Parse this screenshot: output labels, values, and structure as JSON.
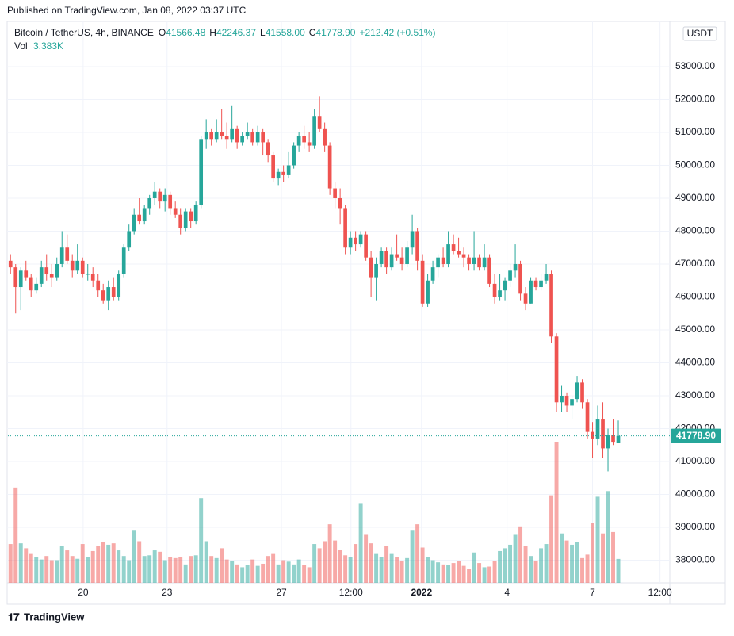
{
  "published": "Published on TradingView.com, Jan 08, 2022 03:37 UTC",
  "footer": "TradingView",
  "chart_data": {
    "type": "candlestick",
    "symbol": "Bitcoin / TetherUS, 4h, BINANCE",
    "ohlc_header": [
      {
        "key": "O",
        "value": "41566.48"
      },
      {
        "key": "H",
        "value": "42246.37"
      },
      {
        "key": "L",
        "value": "41558.00"
      },
      {
        "key": "C",
        "value": "41778.90"
      }
    ],
    "change": "+212.42 (+0.51%)",
    "volume_label": "Vol",
    "volume_value": "3.383K",
    "currency": "USDT",
    "up_color": "#26a69a",
    "down_color": "#ef5350",
    "last_price": {
      "value": 41778.9,
      "label": "41778.90"
    },
    "ylim": [
      37313,
      54349
    ],
    "yticks": [
      {
        "value": 38000,
        "label": "38000.00"
      },
      {
        "value": 39000,
        "label": "39000.00"
      },
      {
        "value": 40000,
        "label": "40000.00"
      },
      {
        "value": 41000,
        "label": "41000.00"
      },
      {
        "value": 42000,
        "label": "42000.00"
      },
      {
        "value": 43000,
        "label": "43000.00"
      },
      {
        "value": 44000,
        "label": "44000.00"
      },
      {
        "value": 45000,
        "label": "45000.00"
      },
      {
        "value": 46000,
        "label": "46000.00"
      },
      {
        "value": 47000,
        "label": "47000.00"
      },
      {
        "value": 48000,
        "label": "48000.00"
      },
      {
        "value": 49000,
        "label": "49000.00"
      },
      {
        "value": 50000,
        "label": "50000.00"
      },
      {
        "value": 51000,
        "label": "51000.00"
      },
      {
        "value": 52000,
        "label": "52000.00"
      },
      {
        "value": 53000,
        "label": "53000.00"
      }
    ],
    "xlim": [
      0,
      128.5
    ],
    "xticks": [
      {
        "value": 14.6,
        "label": "20"
      },
      {
        "value": 30.9,
        "label": "23"
      },
      {
        "value": 53.1,
        "label": "27"
      },
      {
        "value": 66.6,
        "label": "12:00"
      },
      {
        "value": 80.3,
        "label": "2022"
      },
      {
        "value": 96.9,
        "label": "4"
      },
      {
        "value": 113.5,
        "label": "7"
      },
      {
        "value": 126.6,
        "label": "12:00"
      }
    ],
    "grid": true,
    "candles": [
      [
        47100,
        47300,
        46700,
        46900
      ],
      [
        46900,
        47000,
        45500,
        46300
      ],
      [
        46300,
        46900,
        45600,
        46800
      ],
      [
        46800,
        47100,
        46500,
        46600
      ],
      [
        46600,
        46700,
        46000,
        46200
      ],
      [
        46200,
        46600,
        46100,
        46400
      ],
      [
        46400,
        47100,
        46300,
        46900
      ],
      [
        46900,
        47300,
        46500,
        46700
      ],
      [
        46700,
        47000,
        46300,
        46600
      ],
      [
        46600,
        47200,
        46500,
        47000
      ],
      [
        47000,
        48000,
        46900,
        47500
      ],
      [
        47500,
        47900,
        47000,
        47100
      ],
      [
        47100,
        47300,
        46600,
        46800
      ],
      [
        46800,
        47600,
        46700,
        47100
      ],
      [
        47100,
        47200,
        46600,
        46700
      ],
      [
        46700,
        47000,
        46500,
        46700
      ],
      [
        46700,
        46900,
        46300,
        46500
      ],
      [
        46500,
        46700,
        46000,
        46200
      ],
      [
        46200,
        46400,
        45800,
        45900
      ],
      [
        45900,
        46500,
        45600,
        46300
      ],
      [
        46300,
        46600,
        45900,
        46000
      ],
      [
        46000,
        46800,
        45900,
        46700
      ],
      [
        46700,
        47600,
        46600,
        47500
      ],
      [
        47500,
        48200,
        47400,
        48000
      ],
      [
        48000,
        48700,
        47900,
        48500
      ],
      [
        48500,
        49000,
        48200,
        48300
      ],
      [
        48300,
        48800,
        48200,
        48700
      ],
      [
        48700,
        49100,
        48500,
        49000
      ],
      [
        49000,
        49500,
        48800,
        49200
      ],
      [
        49200,
        49300,
        48700,
        48900
      ],
      [
        48900,
        49300,
        48600,
        49100
      ],
      [
        49100,
        49200,
        48500,
        48700
      ],
      [
        48700,
        48900,
        48400,
        48500
      ],
      [
        48500,
        48700,
        47900,
        48100
      ],
      [
        48100,
        48700,
        48000,
        48600
      ],
      [
        48600,
        48700,
        48100,
        48300
      ],
      [
        48300,
        48900,
        48200,
        48800
      ],
      [
        48800,
        50900,
        48700,
        50800
      ],
      [
        50800,
        51400,
        50500,
        51000
      ],
      [
        51000,
        51100,
        50600,
        50800
      ],
      [
        50800,
        51400,
        50700,
        51000
      ],
      [
        51000,
        51700,
        50800,
        50900
      ],
      [
        50900,
        51300,
        50500,
        50800
      ],
      [
        50800,
        51800,
        50700,
        51100
      ],
      [
        51100,
        51200,
        50500,
        50700
      ],
      [
        50700,
        51000,
        50600,
        50900
      ],
      [
        50900,
        51300,
        50800,
        51000
      ],
      [
        51000,
        51100,
        50600,
        50700
      ],
      [
        50700,
        51200,
        50600,
        51000
      ],
      [
        51000,
        51100,
        50300,
        50700
      ],
      [
        50700,
        50800,
        50100,
        50300
      ],
      [
        50300,
        50400,
        49500,
        49600
      ],
      [
        49600,
        49900,
        49400,
        49800
      ],
      [
        49800,
        50000,
        49500,
        49700
      ],
      [
        49700,
        50400,
        49600,
        50000
      ],
      [
        50000,
        50700,
        49900,
        50600
      ],
      [
        50600,
        51000,
        50400,
        50900
      ],
      [
        50900,
        51200,
        50500,
        50700
      ],
      [
        50700,
        51000,
        50400,
        50600
      ],
      [
        50600,
        51700,
        50500,
        51500
      ],
      [
        51500,
        52100,
        51000,
        51100
      ],
      [
        51100,
        51300,
        50400,
        50600
      ],
      [
        50600,
        50700,
        49100,
        49300
      ],
      [
        49300,
        49500,
        48700,
        49000
      ],
      [
        49000,
        49300,
        48200,
        48700
      ],
      [
        48700,
        48800,
        47300,
        47500
      ],
      [
        47500,
        48000,
        47300,
        47800
      ],
      [
        47800,
        48000,
        47400,
        47600
      ],
      [
        47600,
        48000,
        47500,
        47900
      ],
      [
        47900,
        48000,
        47100,
        47200
      ],
      [
        47200,
        47400,
        46000,
        46600
      ],
      [
        46600,
        47200,
        45900,
        47000
      ],
      [
        47000,
        47500,
        46900,
        47400
      ],
      [
        47400,
        47500,
        46700,
        46900
      ],
      [
        46900,
        47500,
        46800,
        47300
      ],
      [
        47300,
        47900,
        47100,
        47200
      ],
      [
        47200,
        47500,
        46800,
        47000
      ],
      [
        47000,
        47700,
        46900,
        47500
      ],
      [
        47500,
        48500,
        47300,
        48000
      ],
      [
        48000,
        48100,
        46800,
        47100
      ],
      [
        47100,
        47300,
        45700,
        45800
      ],
      [
        45800,
        46700,
        45700,
        46500
      ],
      [
        46500,
        47100,
        46400,
        46900
      ],
      [
        46900,
        47300,
        46600,
        47200
      ],
      [
        47200,
        47500,
        46900,
        47000
      ],
      [
        47000,
        48000,
        46900,
        47600
      ],
      [
        47600,
        47900,
        47300,
        47400
      ],
      [
        47400,
        47800,
        47200,
        47300
      ],
      [
        47300,
        47500,
        46900,
        47200
      ],
      [
        47200,
        47300,
        46800,
        47000
      ],
      [
        47000,
        48000,
        46800,
        47200
      ],
      [
        47200,
        47300,
        46800,
        46900
      ],
      [
        46900,
        47600,
        46800,
        47200
      ],
      [
        47200,
        47300,
        46300,
        46400
      ],
      [
        46400,
        46700,
        45800,
        46000
      ],
      [
        46000,
        46700,
        45900,
        46200
      ],
      [
        46200,
        46600,
        45900,
        46500
      ],
      [
        46500,
        47000,
        46300,
        46800
      ],
      [
        46800,
        47600,
        46600,
        47000
      ],
      [
        47000,
        47100,
        45900,
        46100
      ],
      [
        46100,
        46300,
        45600,
        45800
      ],
      [
        45800,
        46600,
        45800,
        46500
      ],
      [
        46500,
        46600,
        46200,
        46300
      ],
      [
        46300,
        46700,
        46200,
        46500
      ],
      [
        46500,
        47000,
        46400,
        46700
      ],
      [
        46700,
        46800,
        44600,
        44800
      ],
      [
        44800,
        44900,
        42500,
        42800
      ],
      [
        42800,
        43300,
        42500,
        43000
      ],
      [
        43000,
        43100,
        42500,
        42700
      ],
      [
        42700,
        43000,
        42300,
        42900
      ],
      [
        42900,
        43600,
        42800,
        43400
      ],
      [
        43400,
        43500,
        42600,
        42800
      ],
      [
        42800,
        42900,
        41700,
        41900
      ],
      [
        41900,
        42200,
        41100,
        41700
      ],
      [
        41700,
        42700,
        41500,
        42300
      ],
      [
        42300,
        42800,
        41100,
        41400
      ],
      [
        41400,
        42000,
        40700,
        41800
      ],
      [
        41800,
        42300,
        41500,
        41600
      ],
      [
        41566.48,
        42246.37,
        41558,
        41778.9
      ]
    ],
    "volumes": [
      5.5,
      13.5,
      5.6,
      4.9,
      4.2,
      3.6,
      3.3,
      3.8,
      3.2,
      3.2,
      5.2,
      4.6,
      3.8,
      3.4,
      5.5,
      3.6,
      4.5,
      5.2,
      5.8,
      5.4,
      5.6,
      4.6,
      3.8,
      3.2,
      7.5,
      5.9,
      3.8,
      3.9,
      4.6,
      4.4,
      3.2,
      3.7,
      3.5,
      3.7,
      2.6,
      3.8,
      3.9,
      12.0,
      5.9,
      3.8,
      3.5,
      4.9,
      3.3,
      3.1,
      2.6,
      2.2,
      2.5,
      3.3,
      2.4,
      2.7,
      3.8,
      4.2,
      2.6,
      3.2,
      3.0,
      2.6,
      3.3,
      2.5,
      2.2,
      5.5,
      4.9,
      5.9,
      8.3,
      6.0,
      4.7,
      3.9,
      3.6,
      5.5,
      11.3,
      6.8,
      5.6,
      4.2,
      3.6,
      5.2,
      4.2,
      3.6,
      3.1,
      3.5,
      7.5,
      8.3,
      5.0,
      3.6,
      3.2,
      2.9,
      2.6,
      2.5,
      2.8,
      3.1,
      2.4,
      2.0,
      4.3,
      2.8,
      2.2,
      2.3,
      3.1,
      4.5,
      4.9,
      5.4,
      6.8,
      8.0,
      5.2,
      3.8,
      3.1,
      4.9,
      5.5,
      12.4,
      20.0,
      7.0,
      6.0,
      5.4,
      5.8,
      3.5,
      4.0,
      8.5,
      12.2,
      7.0,
      13.0,
      7.2,
      3.383
    ]
  }
}
